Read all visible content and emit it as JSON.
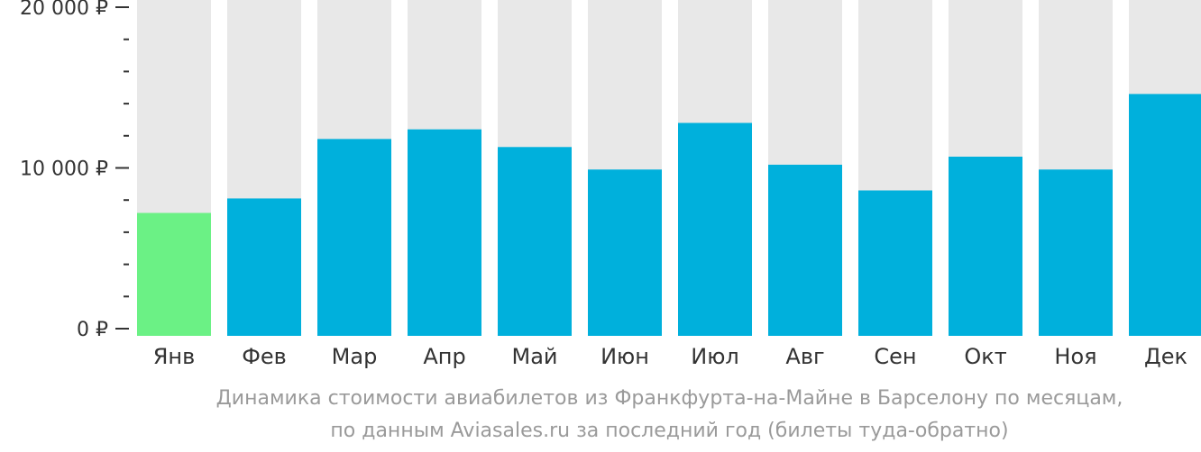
{
  "chart_data": {
    "type": "bar",
    "categories": [
      "Янв",
      "Фев",
      "Мар",
      "Апр",
      "Май",
      "Июн",
      "Июл",
      "Авг",
      "Сен",
      "Окт",
      "Ноя",
      "Дек"
    ],
    "values": [
      7200,
      8100,
      11800,
      12400,
      11300,
      9900,
      12800,
      10200,
      8600,
      10700,
      9900,
      14600
    ],
    "ylim": [
      0,
      20000
    ],
    "yticks": [
      {
        "value": 0,
        "label": "0 ₽"
      },
      {
        "value": 10000,
        "label": "10 000 ₽"
      },
      {
        "value": 20000,
        "label": "20 000 ₽"
      }
    ],
    "minor_tick_step": 2000,
    "highlight_index": 0,
    "colors": {
      "bar": "#00b0dc",
      "highlight": "#6bf185",
      "background_bar": "#e8e8e8",
      "axis": "#333333"
    },
    "caption": {
      "line1": "Динамика стоимости авиабилетов из Франкфурта-на-Майне в Барселону по месяцам,",
      "line2": "по данным Aviasales.ru за последний год (билеты туда-обратно)"
    }
  }
}
